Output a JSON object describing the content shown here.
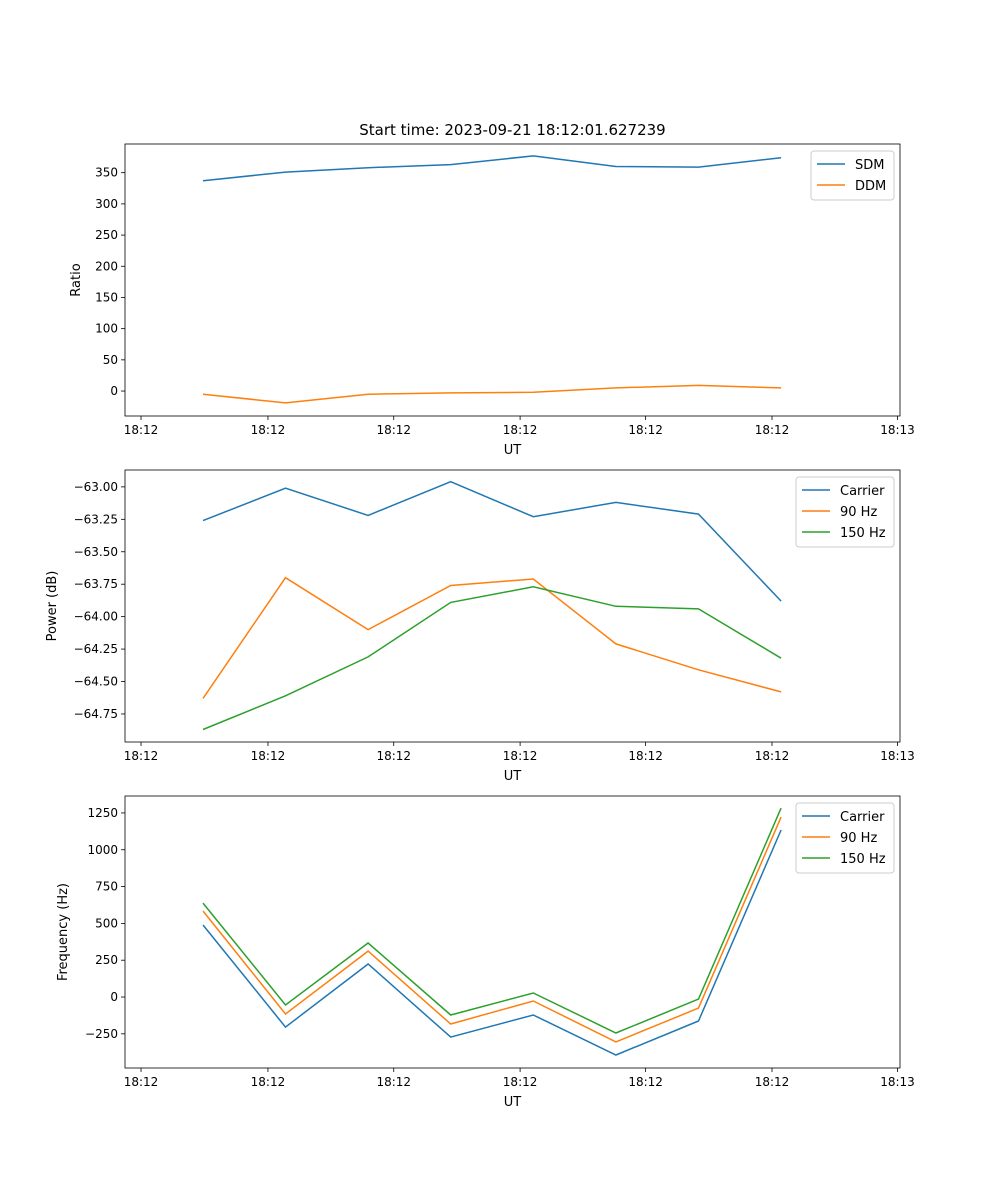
{
  "title": "Start time: 2023-09-21 18:12:01.627239",
  "colors": {
    "blue": "#1f77b4",
    "orange": "#ff7f0e",
    "green": "#2ca02c"
  },
  "chart_data": [
    {
      "type": "line",
      "xlabel": "UT",
      "ylabel": "Ratio",
      "x": [
        0,
        1,
        2,
        3,
        4,
        5,
        6,
        7
      ],
      "xlim": [
        -0.944,
        8.44
      ],
      "xticks": [
        -0.75,
        0.787,
        2.31,
        3.84,
        5.36,
        6.89,
        8.41
      ],
      "xticklabels": [
        "18:12",
        "18:12",
        "18:12",
        "18:12",
        "18:12",
        "18:12",
        "18:13"
      ],
      "ylim": [
        -40,
        396
      ],
      "yticks": [
        0,
        50,
        100,
        150,
        200,
        250,
        300,
        350
      ],
      "yticklabels": [
        "0",
        "50",
        "100",
        "150",
        "200",
        "250",
        "300",
        "350"
      ],
      "legend": "top-right",
      "series": [
        {
          "name": "SDM",
          "color": "#1f77b4",
          "values": [
            337,
            351,
            358,
            363,
            377,
            360,
            359,
            374
          ]
        },
        {
          "name": "DDM",
          "color": "#ff7f0e",
          "values": [
            -5,
            -19,
            -5,
            -3,
            -2,
            5,
            9,
            5
          ]
        }
      ]
    },
    {
      "type": "line",
      "xlabel": "UT",
      "ylabel": "Power (dB)",
      "x": [
        0,
        1,
        2,
        3,
        4,
        5,
        6,
        7
      ],
      "xlim": [
        -0.944,
        8.44
      ],
      "xticks": [
        -0.75,
        0.787,
        2.31,
        3.84,
        5.36,
        6.89,
        8.41
      ],
      "xticklabels": [
        "18:12",
        "18:12",
        "18:12",
        "18:12",
        "18:12",
        "18:12",
        "18:13"
      ],
      "ylim": [
        -64.966,
        -62.87
      ],
      "yticks": [
        -64.75,
        -64.5,
        -64.25,
        -64.0,
        -63.75,
        -63.5,
        -63.25,
        -63.0
      ],
      "yticklabels": [
        "−64.75",
        "−64.50",
        "−64.25",
        "−64.00",
        "−63.75",
        "−63.50",
        "−63.25",
        "−63.00"
      ],
      "legend": "top-right",
      "series": [
        {
          "name": "Carrier",
          "color": "#1f77b4",
          "values": [
            -63.26,
            -63.01,
            -63.22,
            -62.96,
            -63.23,
            -63.12,
            -63.21,
            -63.88
          ]
        },
        {
          "name": "90 Hz",
          "color": "#ff7f0e",
          "values": [
            -64.63,
            -63.7,
            -64.1,
            -63.76,
            -63.71,
            -64.21,
            -64.41,
            -64.58
          ]
        },
        {
          "name": "150 Hz",
          "color": "#2ca02c",
          "values": [
            -64.87,
            -64.61,
            -64.31,
            -63.89,
            -63.77,
            -63.92,
            -63.94,
            -64.32
          ]
        }
      ]
    },
    {
      "type": "line",
      "xlabel": "UT",
      "ylabel": "Frequency (Hz)",
      "x": [
        0,
        1,
        2,
        3,
        4,
        5,
        6,
        7
      ],
      "xlim": [
        -0.944,
        8.44
      ],
      "xticks": [
        -0.75,
        0.787,
        2.31,
        3.84,
        5.36,
        6.89,
        8.41
      ],
      "xticklabels": [
        "18:12",
        "18:12",
        "18:12",
        "18:12",
        "18:12",
        "18:12",
        "18:13"
      ],
      "ylim": [
        -482,
        1365
      ],
      "yticks": [
        -250,
        0,
        250,
        500,
        750,
        1000,
        1250
      ],
      "yticklabels": [
        "−250",
        "0",
        "250",
        "500",
        "750",
        "1000",
        "1250"
      ],
      "legend": "top-right",
      "series": [
        {
          "name": "Carrier",
          "color": "#1f77b4",
          "values": [
            489,
            -204,
            224,
            -272,
            -122,
            -394,
            -163,
            1134
          ]
        },
        {
          "name": "90 Hz",
          "color": "#ff7f0e",
          "values": [
            584,
            -115,
            312,
            -183,
            -27,
            -305,
            -75,
            1222
          ]
        },
        {
          "name": "150 Hz",
          "color": "#2ca02c",
          "values": [
            638,
            -54,
            367,
            -122,
            27,
            -244,
            -14,
            1283
          ]
        }
      ]
    }
  ]
}
